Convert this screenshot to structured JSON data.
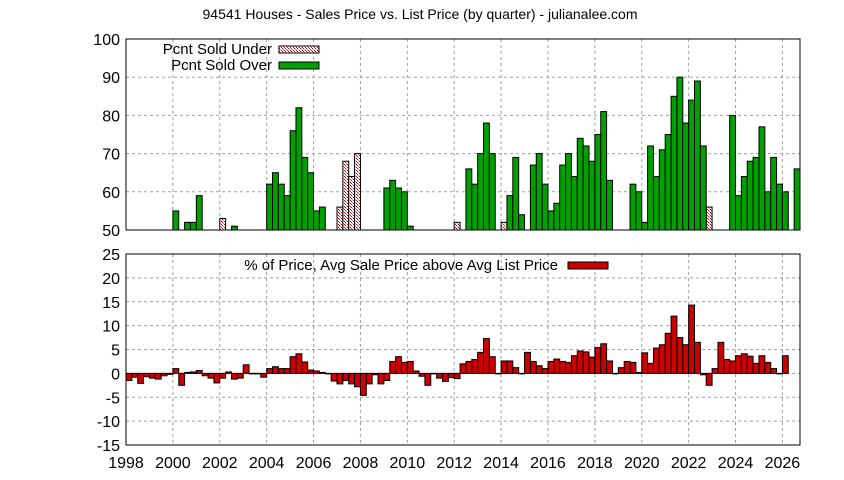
{
  "chart_data": [
    {
      "type": "bar",
      "title": "94541 Houses - Sales Price vs. List Price (by quarter) - julianalee.com",
      "xlabel": "",
      "ylabel": "",
      "ylim": [
        50,
        100
      ],
      "yticks": [
        50,
        60,
        70,
        80,
        90,
        100
      ],
      "xlim": [
        1998,
        2026.75
      ],
      "xticks": [
        1998,
        2000,
        2002,
        2004,
        2006,
        2008,
        2010,
        2012,
        2014,
        2016,
        2018,
        2020,
        2022,
        2024,
        2026
      ],
      "grid": true,
      "legend_position": "top-left",
      "x_start": "1998Q1",
      "x_step": "quarter",
      "series": [
        {
          "name": "Pcnt Sold Under",
          "color": "#cc0000",
          "pattern": "crosshatch",
          "values": [
            null,
            null,
            null,
            null,
            null,
            null,
            null,
            null,
            null,
            null,
            null,
            null,
            null,
            null,
            null,
            null,
            53,
            null,
            null,
            null,
            null,
            null,
            null,
            null,
            null,
            null,
            null,
            null,
            null,
            null,
            null,
            null,
            null,
            null,
            null,
            null,
            56,
            68,
            64,
            70,
            null,
            null,
            null,
            null,
            null,
            null,
            null,
            null,
            null,
            null,
            null,
            null,
            null,
            null,
            null,
            null,
            52,
            null,
            null,
            null,
            null,
            null,
            null,
            null,
            52,
            null,
            null,
            null,
            null,
            null,
            null,
            null,
            null,
            null,
            null,
            null,
            null,
            null,
            null,
            null,
            null,
            null,
            null,
            null,
            null,
            null,
            null,
            null,
            null,
            null,
            null,
            null,
            null,
            null,
            null,
            null,
            null,
            null,
            null,
            56,
            null,
            null,
            null,
            null,
            null,
            null,
            null,
            null,
            null,
            null,
            null,
            null,
            null
          ]
        },
        {
          "name": "Pcnt Sold Over",
          "color": "#00a000",
          "values": [
            null,
            null,
            null,
            null,
            null,
            null,
            null,
            null,
            55,
            null,
            52,
            52,
            59,
            null,
            null,
            null,
            null,
            null,
            51,
            null,
            null,
            null,
            null,
            null,
            62,
            65,
            62,
            59,
            76,
            82,
            69,
            65,
            55,
            56,
            null,
            null,
            null,
            null,
            null,
            null,
            null,
            null,
            null,
            null,
            61,
            63,
            61,
            60,
            51,
            null,
            null,
            null,
            null,
            null,
            null,
            null,
            null,
            null,
            66,
            62,
            70,
            78,
            70,
            null,
            null,
            59,
            69,
            54,
            null,
            67,
            70,
            62,
            55,
            57,
            67,
            70,
            64,
            74,
            72,
            68,
            75,
            81,
            63,
            null,
            null,
            null,
            62,
            60,
            52,
            72,
            64,
            71,
            75,
            85,
            90,
            78,
            84,
            89,
            72,
            null,
            null,
            null,
            null,
            80,
            59,
            64,
            68,
            69,
            77,
            60,
            69,
            62,
            60,
            null,
            66
          ]
        }
      ]
    },
    {
      "type": "bar",
      "title": "",
      "xlabel": "",
      "ylabel": "",
      "ylim": [
        -15,
        25
      ],
      "yticks": [
        -15,
        -10,
        -5,
        0,
        5,
        10,
        15,
        20,
        25
      ],
      "xlim": [
        1998,
        2026.75
      ],
      "xticks": [
        1998,
        2000,
        2002,
        2004,
        2006,
        2008,
        2010,
        2012,
        2014,
        2016,
        2018,
        2020,
        2022,
        2024,
        2026
      ],
      "grid": true,
      "legend_position": "top-center",
      "x_start": "1998Q1",
      "x_step": "quarter",
      "series": [
        {
          "name": "% of Price, Avg Sale Price above Avg List Price",
          "color": "#cc0000",
          "values": [
            -1.5,
            -0.8,
            -2.1,
            -0.7,
            -1.0,
            -1.2,
            -0.5,
            -0.2,
            1.0,
            -2.5,
            0.2,
            0.3,
            0.6,
            -0.5,
            -1.0,
            -2.0,
            -1.0,
            0.3,
            -1.2,
            -1.0,
            1.8,
            0,
            0,
            -0.8,
            1.0,
            1.4,
            1.0,
            1.0,
            3.5,
            4.1,
            2.4,
            0.7,
            0.5,
            0.2,
            0,
            -1.6,
            -2.2,
            -1.5,
            -2.2,
            -2.8,
            -4.6,
            -2.2,
            -0.3,
            -2.2,
            -1.5,
            2.5,
            3.5,
            2.3,
            2.5,
            0.5,
            -0.6,
            -2.5,
            0,
            -1.0,
            -1.7,
            -0.9,
            -1.1,
            2.0,
            2.5,
            2.9,
            4.4,
            7.3,
            3.5,
            0,
            2.6,
            2.6,
            1.2,
            0,
            4.4,
            2.5,
            1.6,
            1.0,
            2.5,
            3.0,
            2.5,
            2.3,
            3.7,
            4.7,
            4.5,
            3.4,
            5.4,
            6.2,
            2.6,
            0,
            1.2,
            2.5,
            2.3,
            0.2,
            4.3,
            2.1,
            5.3,
            6.0,
            8.4,
            12.0,
            7.5,
            6.0,
            14.3,
            6.5,
            -0.3,
            -2.5,
            1.0,
            6.5,
            2.9,
            2.6,
            3.7,
            4.1,
            3.6,
            2.1,
            3.7,
            2.3,
            1.0,
            0,
            3.7
          ]
        }
      ]
    }
  ],
  "title": "94541 Houses - Sales Price vs. List Price (by quarter) - julianalee.com",
  "legend_top": {
    "under": "Pcnt Sold Under",
    "over": "Pcnt Sold Over"
  },
  "legend_bottom": {
    "pct": "% of Price, Avg Sale Price above Avg List Price"
  },
  "colors": {
    "over": "#00a000",
    "under_pattern": "#cc0000",
    "pct": "#cc0000",
    "grid": "#a0a0a0",
    "axis": "#000000"
  }
}
